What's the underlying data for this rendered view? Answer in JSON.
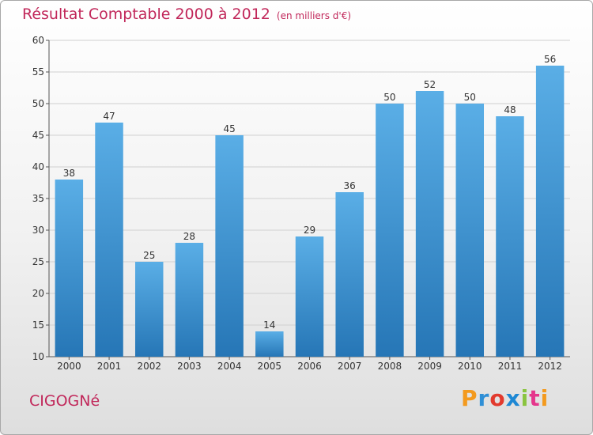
{
  "header": {
    "title": "Résultat Comptable 2000 à 2012",
    "subtitle": "(en milliers d'€)"
  },
  "commune": "CIGOGNé",
  "logo": {
    "letters": [
      "P",
      "r",
      "o",
      "x",
      "i",
      "t",
      "i"
    ],
    "colors": [
      "#f39a1e",
      "#2f8fd6",
      "#e23a2e",
      "#1e88d4",
      "#8ac43f",
      "#e5368c",
      "#f39a1e"
    ]
  },
  "colors": {
    "bar_top": "#5aaee6",
    "bar_bottom": "#2676b6",
    "grid": "#d0d0d0",
    "title": "#c1275a"
  },
  "chart_data": {
    "type": "bar",
    "categories": [
      "2000",
      "2001",
      "2002",
      "2003",
      "2004",
      "2005",
      "2006",
      "2007",
      "2008",
      "2009",
      "2010",
      "2011",
      "2012"
    ],
    "values": [
      38,
      47,
      25,
      28,
      45,
      14,
      29,
      36,
      50,
      52,
      50,
      48,
      56
    ],
    "title": "Résultat Comptable 2000 à 2012",
    "subtitle": "(en milliers d'€)",
    "xlabel": "",
    "ylabel": "",
    "ylim": [
      10,
      60
    ],
    "yticks": [
      10,
      15,
      20,
      25,
      30,
      35,
      40,
      45,
      50,
      55,
      60
    ],
    "grid": true
  }
}
